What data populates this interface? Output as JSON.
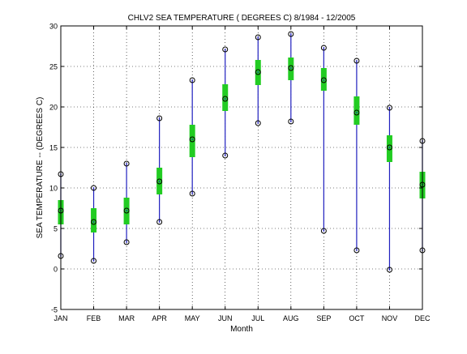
{
  "chart_data": {
    "type": "box",
    "title": "CHLV2  SEA TEMPERATURE ( DEGREES C) 8/1984 - 12/2005",
    "xlabel": "Month",
    "ylabel": "SEA TEMPERATURE -- (DEGREES C)",
    "ylim": [
      -5,
      30
    ],
    "yticks": [
      -5,
      0,
      5,
      10,
      15,
      20,
      25,
      30
    ],
    "categories": [
      "JAN",
      "FEB",
      "MAR",
      "APR",
      "MAY",
      "JUN",
      "JUL",
      "AUG",
      "SEP",
      "OCT",
      "NOV",
      "DEC"
    ],
    "grid": true,
    "colors": {
      "whisker": "#1f1fbf",
      "box": "#22cc22",
      "marker": "#000000"
    },
    "series": [
      {
        "min": 1.6,
        "q1": 5.5,
        "median": 7.2,
        "q3": 8.5,
        "max": 11.7
      },
      {
        "min": 1.0,
        "q1": 4.5,
        "median": 5.8,
        "q3": 7.5,
        "max": 10.0
      },
      {
        "min": 3.3,
        "q1": 5.5,
        "median": 7.2,
        "q3": 8.8,
        "max": 13.0
      },
      {
        "min": 5.8,
        "q1": 9.2,
        "median": 10.8,
        "q3": 12.5,
        "max": 18.6
      },
      {
        "min": 9.3,
        "q1": 13.8,
        "median": 16.0,
        "q3": 17.8,
        "max": 23.3
      },
      {
        "min": 14.0,
        "q1": 19.5,
        "median": 21.0,
        "q3": 22.8,
        "max": 27.1
      },
      {
        "min": 18.0,
        "q1": 22.7,
        "median": 24.3,
        "q3": 25.8,
        "max": 28.6
      },
      {
        "min": 18.2,
        "q1": 23.3,
        "median": 24.8,
        "q3": 26.1,
        "max": 29.0
      },
      {
        "min": 4.7,
        "q1": 22.0,
        "median": 23.3,
        "q3": 24.8,
        "max": 27.3
      },
      {
        "min": 2.3,
        "q1": 17.8,
        "median": 19.3,
        "q3": 21.3,
        "max": 25.7
      },
      {
        "min": -0.1,
        "q1": 13.2,
        "median": 15.0,
        "q3": 16.5,
        "max": 19.9
      },
      {
        "min": 2.3,
        "q1": 8.7,
        "median": 10.4,
        "q3": 12.0,
        "max": 15.8
      }
    ]
  }
}
